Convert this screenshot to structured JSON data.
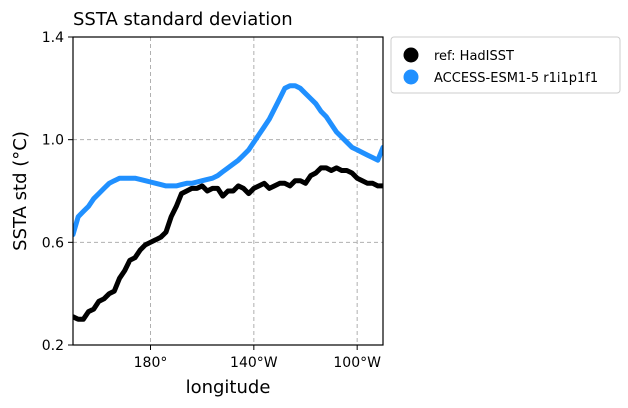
{
  "chart_data": {
    "type": "line",
    "title": "SSTA standard deviation",
    "xlabel": "longitude",
    "ylabel": "SSTA std ($^\\circ$C)",
    "ylabel_display": "SSTA std (°C)",
    "xlim": [
      150,
      270
    ],
    "ylim": [
      0.2,
      1.4
    ],
    "xticks": [
      {
        "value": 180,
        "label": "180°"
      },
      {
        "value": 220,
        "label": "140°W"
      },
      {
        "value": 260,
        "label": "100°W"
      }
    ],
    "yticks": [
      {
        "value": 0.2,
        "label": "0.2"
      },
      {
        "value": 0.6,
        "label": "0.6"
      },
      {
        "value": 1.0,
        "label": "1.0"
      },
      {
        "value": 1.4,
        "label": "1.4"
      }
    ],
    "grid": true,
    "legend_position": "outside-right",
    "series": [
      {
        "name": "ref: HadISST",
        "color": "#000000",
        "x": [
          150,
          152,
          154,
          156,
          158,
          160,
          162,
          164,
          166,
          168,
          170,
          172,
          174,
          176,
          178,
          180,
          182,
          184,
          186,
          188,
          190,
          192,
          194,
          196,
          198,
          200,
          202,
          204,
          206,
          208,
          210,
          212,
          214,
          216,
          218,
          220,
          222,
          224,
          226,
          228,
          230,
          232,
          234,
          236,
          238,
          240,
          242,
          244,
          246,
          248,
          250,
          252,
          254,
          256,
          258,
          260,
          262,
          264,
          266,
          268,
          270
        ],
        "y": [
          0.31,
          0.3,
          0.3,
          0.33,
          0.34,
          0.37,
          0.38,
          0.4,
          0.41,
          0.46,
          0.49,
          0.53,
          0.54,
          0.57,
          0.59,
          0.6,
          0.61,
          0.62,
          0.64,
          0.7,
          0.74,
          0.79,
          0.8,
          0.81,
          0.81,
          0.82,
          0.8,
          0.81,
          0.81,
          0.78,
          0.8,
          0.8,
          0.82,
          0.81,
          0.79,
          0.81,
          0.82,
          0.83,
          0.81,
          0.82,
          0.83,
          0.83,
          0.82,
          0.84,
          0.84,
          0.83,
          0.86,
          0.87,
          0.89,
          0.89,
          0.88,
          0.89,
          0.88,
          0.88,
          0.87,
          0.85,
          0.84,
          0.83,
          0.83,
          0.82,
          0.82
        ]
      },
      {
        "name": "ACCESS-ESM1-5 r1i1p1f1",
        "color": "#2090ff",
        "x": [
          150,
          152,
          154,
          156,
          158,
          160,
          162,
          164,
          166,
          168,
          170,
          172,
          174,
          176,
          178,
          180,
          182,
          184,
          186,
          188,
          190,
          192,
          194,
          196,
          198,
          200,
          202,
          204,
          206,
          208,
          210,
          212,
          214,
          216,
          218,
          220,
          222,
          224,
          226,
          228,
          230,
          232,
          234,
          236,
          238,
          240,
          242,
          244,
          246,
          248,
          250,
          252,
          254,
          256,
          258,
          260,
          262,
          264,
          266,
          268,
          270
        ],
        "y": [
          0.63,
          0.7,
          0.72,
          0.74,
          0.77,
          0.79,
          0.81,
          0.83,
          0.84,
          0.85,
          0.85,
          0.85,
          0.85,
          0.845,
          0.84,
          0.835,
          0.83,
          0.825,
          0.82,
          0.82,
          0.82,
          0.825,
          0.83,
          0.83,
          0.835,
          0.84,
          0.845,
          0.85,
          0.86,
          0.875,
          0.89,
          0.905,
          0.92,
          0.94,
          0.96,
          0.99,
          1.02,
          1.05,
          1.08,
          1.12,
          1.16,
          1.2,
          1.21,
          1.21,
          1.2,
          1.18,
          1.16,
          1.14,
          1.11,
          1.09,
          1.06,
          1.03,
          1.01,
          0.99,
          0.97,
          0.96,
          0.95,
          0.94,
          0.93,
          0.92,
          0.97
        ]
      }
    ]
  }
}
